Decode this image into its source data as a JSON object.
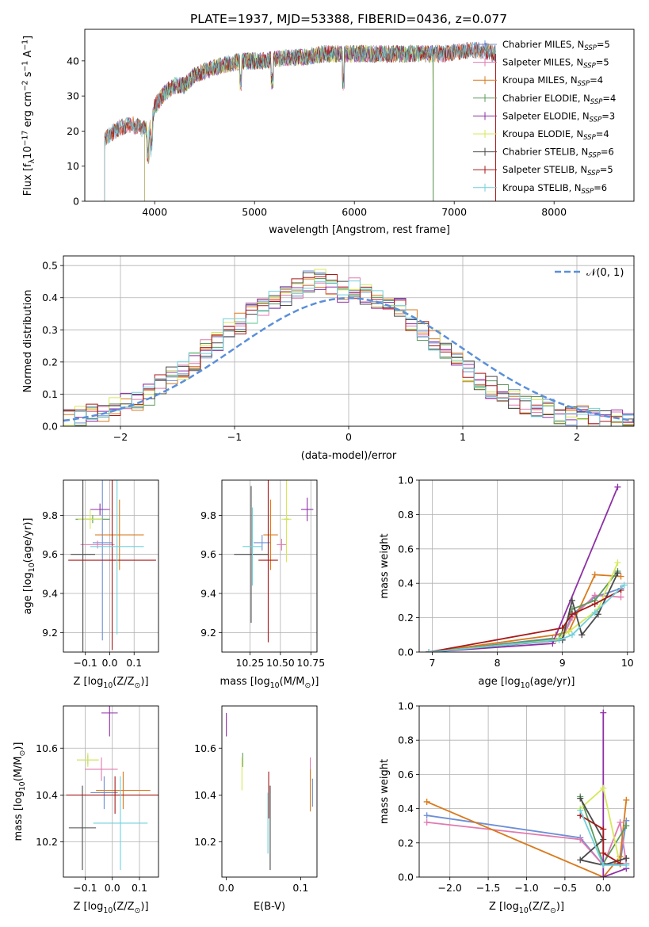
{
  "title": "PLATE=1937, MJD=53388, FIBERID=0436, z=0.077",
  "colors": {
    "chabrier_miles": "#6d8fd6",
    "salpeter_miles": "#e07aae",
    "kroupa_miles": "#d97a1c",
    "chabrier_elodie": "#5c9a5c",
    "salpeter_elodie": "#8e2fa6",
    "kroupa_elodie": "#d6e85a",
    "chabrier_stelib": "#4a4a4a",
    "salpeter_stelib": "#a81a1a",
    "kroupa_stelib": "#6fd0dc",
    "normal_curve": "#5b8fd9",
    "grid": "#b0b0b0"
  },
  "chart_data": [
    {
      "id": "spectrum",
      "type": "line",
      "xlabel": "wavelength [Angstrom, rest frame]",
      "ylabel": "Flux [f$_\\lambda$10$^{-17}$ erg cm$^{-2}$ s$^{-1}$ A$^{-1}$]",
      "ylabel_parts": [
        "Flux [f",
        "λ",
        "10",
        "−17",
        " erg cm",
        "−2",
        " s",
        "−1",
        " A",
        "−1",
        "]"
      ],
      "xlim": [
        3300,
        8800
      ],
      "ylim": [
        0,
        49
      ],
      "xticks": [
        4000,
        5000,
        6000,
        7000,
        8000
      ],
      "yticks": [
        0,
        10,
        20,
        30,
        40
      ],
      "grid": false,
      "legend_position": "upper-right",
      "legend": [
        {
          "key": "chabrier_miles",
          "label": "Chabrier MILES, N",
          "sub": "SSP",
          "tail": "=5"
        },
        {
          "key": "salpeter_miles",
          "label": "Salpeter MILES, N",
          "sub": "SSP",
          "tail": "=5"
        },
        {
          "key": "kroupa_miles",
          "label": "Kroupa MILES, N",
          "sub": "SSP",
          "tail": "=4"
        },
        {
          "key": "chabrier_elodie",
          "label": "Chabrier ELODIE, N",
          "sub": "SSP",
          "tail": "=4"
        },
        {
          "key": "salpeter_elodie",
          "label": "Salpeter ELODIE, N",
          "sub": "SSP",
          "tail": "=3"
        },
        {
          "key": "kroupa_elodie",
          "label": "Kroupa ELODIE, N",
          "sub": "SSP",
          "tail": "=4"
        },
        {
          "key": "chabrier_stelib",
          "label": "Chabrier STELIB, N",
          "sub": "SSP",
          "tail": "=6"
        },
        {
          "key": "salpeter_stelib",
          "label": "Salpeter STELIB, N",
          "sub": "SSP",
          "tail": "=5"
        },
        {
          "key": "kroupa_stelib",
          "label": "Kroupa STELIB, N",
          "sub": "SSP",
          "tail": "=6"
        }
      ],
      "continuum_wavelength": [
        3500,
        3550,
        3650,
        3750,
        3850,
        3950,
        4000,
        4100,
        4200,
        4300,
        4400,
        4500,
        4700,
        4900,
        5100,
        5300,
        5500,
        5700,
        5900,
        6100,
        6300,
        6500,
        6700,
        6900,
        7100,
        7300,
        7400
      ],
      "continuum_flux": [
        17,
        19,
        21,
        22,
        21,
        20,
        27,
        31,
        33,
        33,
        36,
        37,
        39,
        40,
        40,
        41,
        41,
        42,
        42,
        42,
        42,
        42,
        42,
        42,
        43,
        43,
        42
      ]
    },
    {
      "id": "residual_histogram",
      "type": "line",
      "xlabel": "(data-model)/error",
      "ylabel": "Normed distribution",
      "xlim": [
        -2.5,
        2.5
      ],
      "ylim": [
        0,
        0.53
      ],
      "xticks": [
        -2,
        -1,
        0,
        1,
        2
      ],
      "xtick_labels": [
        "−2",
        "−1",
        "0",
        "1",
        "2"
      ],
      "yticks": [
        0.0,
        0.1,
        0.2,
        0.3,
        0.4,
        0.5
      ],
      "ytick_labels": [
        "0.0",
        "0.1",
        "0.2",
        "0.3",
        "0.4",
        "0.5"
      ],
      "grid": true,
      "legend_position": "upper-right",
      "legend": [
        {
          "label": "𝒩(0, 1)"
        }
      ],
      "bin_width": 0.1,
      "bin_start": -2.5,
      "bin_values": [
        0.02,
        0.03,
        0.04,
        0.05,
        0.06,
        0.07,
        0.08,
        0.1,
        0.13,
        0.15,
        0.18,
        0.2,
        0.24,
        0.27,
        0.3,
        0.32,
        0.35,
        0.37,
        0.39,
        0.41,
        0.43,
        0.45,
        0.46,
        0.44,
        0.42,
        0.43,
        0.41,
        0.4,
        0.38,
        0.37,
        0.33,
        0.3,
        0.27,
        0.24,
        0.2,
        0.17,
        0.14,
        0.12,
        0.1,
        0.08,
        0.07,
        0.06,
        0.05,
        0.04,
        0.035,
        0.03,
        0.025,
        0.02,
        0.02,
        0.02
      ]
    },
    {
      "id": "z_vs_age",
      "type": "scatter",
      "xlabel": "Z [log$_{10}$(Z/Z$_\\odot$)]",
      "xlabel_parts": [
        "Z [log",
        "10",
        "(Z/Z",
        "⊙",
        ")]"
      ],
      "ylabel": "age  [log$_{10}$(age/yr)]",
      "ylabel_parts": [
        "age  [log",
        "10",
        "(age/yr)]"
      ],
      "xlim": [
        -0.19,
        0.2
      ],
      "ylim": [
        9.1,
        9.98
      ],
      "xticks": [
        -0.1,
        0.0,
        0.1
      ],
      "xtick_labels": [
        "−0.1",
        "0.0",
        "0.1"
      ],
      "yticks": [
        9.2,
        9.4,
        9.6,
        9.8
      ],
      "ytick_labels": [
        "9.2",
        "9.4",
        "9.6",
        "9.8"
      ],
      "grid": true,
      "points": [
        {
          "key": "chabrier_miles",
          "x": -0.03,
          "xerr": 0.04,
          "y": 9.66,
          "yerr": 0.5
        },
        {
          "key": "salpeter_miles",
          "x": -0.05,
          "xerr": 0.07,
          "y": 9.65,
          "yerr": 0.02
        },
        {
          "key": "kroupa_miles",
          "x": 0.04,
          "xerr": 0.1,
          "y": 9.7,
          "yerr": 0.18
        },
        {
          "key": "chabrier_elodie",
          "x": -0.07,
          "xerr": 0.07,
          "y": 9.78,
          "yerr": 0.02
        },
        {
          "key": "salpeter_elodie",
          "x": -0.04,
          "xerr": 0.04,
          "y": 9.83,
          "yerr": 0.03
        },
        {
          "key": "kroupa_elodie",
          "x": -0.08,
          "xerr": 0.05,
          "y": 9.78,
          "yerr": 0.05
        },
        {
          "key": "chabrier_stelib",
          "x": -0.11,
          "xerr": 0.05,
          "y": 9.6,
          "yerr": 0.5
        },
        {
          "key": "salpeter_stelib",
          "x": 0.01,
          "xerr": 0.18,
          "y": 9.57,
          "yerr": 0.46
        },
        {
          "key": "kroupa_stelib",
          "x": 0.03,
          "xerr": 0.11,
          "y": 9.64,
          "yerr": 0.45
        }
      ]
    },
    {
      "id": "mass_vs_age",
      "type": "scatter",
      "xlabel": "mass [log$_{10}$(M/M$_\\odot$)]",
      "xlabel_parts": [
        "mass [log",
        "10",
        "(M/M",
        "⊙",
        ")]"
      ],
      "xlim": [
        10.02,
        10.8
      ],
      "ylim": [
        9.1,
        9.98
      ],
      "xticks": [
        10.25,
        10.5,
        10.75
      ],
      "xtick_labels": [
        "10.25",
        "10.50",
        "10.75"
      ],
      "yticks": [
        9.2,
        9.4,
        9.6,
        9.8
      ],
      "ytick_labels": [
        "9.2",
        "9.4",
        "9.6",
        "9.8"
      ],
      "grid": true,
      "points": [
        {
          "key": "chabrier_miles",
          "x": 10.35,
          "xerr": 0.07,
          "y": 9.66,
          "yerr": 0.04
        },
        {
          "key": "salpeter_miles",
          "x": 10.51,
          "xerr": 0.04,
          "y": 9.65,
          "yerr": 0.03
        },
        {
          "key": "kroupa_miles",
          "x": 10.42,
          "xerr": 0.06,
          "y": 9.7,
          "yerr": 0.18
        },
        {
          "key": "chabrier_elodie",
          "x": 10.55,
          "xerr": 0.02,
          "y": 9.78,
          "yerr": 0.02
        },
        {
          "key": "salpeter_elodie",
          "x": 10.72,
          "xerr": 0.05,
          "y": 9.83,
          "yerr": 0.06
        },
        {
          "key": "kroupa_elodie",
          "x": 10.55,
          "xerr": 0.04,
          "y": 9.78,
          "yerr": 0.22
        },
        {
          "key": "chabrier_stelib",
          "x": 10.26,
          "xerr": 0.14,
          "y": 9.6,
          "yerr": 0.35
        },
        {
          "key": "salpeter_stelib",
          "x": 10.4,
          "xerr": 0.08,
          "y": 9.57,
          "yerr": 0.42
        },
        {
          "key": "kroupa_stelib",
          "x": 10.27,
          "xerr": 0.08,
          "y": 9.64,
          "yerr": 0.2
        }
      ]
    },
    {
      "id": "age_vs_weight",
      "type": "line",
      "xlabel": "age  [log$_{10}$(age/yr)]",
      "xlabel_parts": [
        "age  [log",
        "10",
        "(age/yr)]"
      ],
      "ylabel": "mass weight",
      "xlim": [
        6.8,
        10.1
      ],
      "ylim": [
        0,
        1
      ],
      "xticks": [
        7,
        8,
        9,
        10
      ],
      "xtick_labels": [
        "7",
        "8",
        "9",
        "10"
      ],
      "yticks": [
        0.0,
        0.2,
        0.4,
        0.6,
        0.8,
        1.0
      ],
      "ytick_labels": [
        "0.0",
        "0.2",
        "0.4",
        "0.6",
        "0.8",
        "1.0"
      ],
      "grid": true,
      "series": [
        {
          "key": "chabrier_miles",
          "x": [
            6.95,
            8.85,
            9.0,
            9.15,
            9.5,
            9.9
          ],
          "y": [
            0.0,
            0.08,
            0.07,
            0.22,
            0.32,
            0.37
          ]
        },
        {
          "key": "salpeter_miles",
          "x": [
            6.95,
            8.85,
            9.0,
            9.15,
            9.5,
            9.9
          ],
          "y": [
            0.0,
            0.07,
            0.08,
            0.2,
            0.33,
            0.32
          ]
        },
        {
          "key": "kroupa_miles",
          "x": [
            6.95,
            8.9,
            9.1,
            9.5,
            9.9
          ],
          "y": [
            0.0,
            0.1,
            0.12,
            0.45,
            0.44
          ]
        },
        {
          "key": "chabrier_elodie",
          "x": [
            6.95,
            8.95,
            9.15,
            9.5,
            9.85
          ],
          "y": [
            0.0,
            0.08,
            0.25,
            0.3,
            0.47
          ]
        },
        {
          "key": "salpeter_elodie",
          "x": [
            6.95,
            8.85,
            9.85
          ],
          "y": [
            0.0,
            0.05,
            0.96
          ]
        },
        {
          "key": "kroupa_elodie",
          "x": [
            6.95,
            8.9,
            9.1,
            9.55,
            9.85
          ],
          "y": [
            0.0,
            0.07,
            0.12,
            0.25,
            0.52
          ]
        },
        {
          "key": "chabrier_stelib",
          "x": [
            6.95,
            9.0,
            9.15,
            9.3,
            9.55,
            9.85
          ],
          "y": [
            0.0,
            0.07,
            0.3,
            0.1,
            0.22,
            0.46
          ]
        },
        {
          "key": "salpeter_stelib",
          "x": [
            6.95,
            9.0,
            9.15,
            9.5,
            9.9
          ],
          "y": [
            0.0,
            0.14,
            0.22,
            0.28,
            0.36
          ]
        },
        {
          "key": "kroupa_stelib",
          "x": [
            6.95,
            8.95,
            9.15,
            9.5,
            9.95
          ],
          "y": [
            0.0,
            0.07,
            0.1,
            0.23,
            0.39
          ]
        }
      ]
    },
    {
      "id": "z_vs_mass",
      "type": "scatter",
      "xlabel": "Z [log$_{10}$(Z/Z$_\\odot$)]",
      "xlabel_parts": [
        "Z [log",
        "10",
        "(Z/Z",
        "⊙",
        ")]"
      ],
      "ylabel": "mass [log$_{10}$(M/M$_\\odot$)]",
      "ylabel_parts": [
        "mass [log",
        "10",
        "(M/M",
        "⊙",
        ")]"
      ],
      "xlim": [
        -0.18,
        0.17
      ],
      "ylim": [
        10.05,
        10.78
      ],
      "xticks": [
        -0.1,
        0.0,
        0.1
      ],
      "xtick_labels": [
        "−0.1",
        "0.0",
        "0.1"
      ],
      "yticks": [
        10.2,
        10.4,
        10.6
      ],
      "ytick_labels": [
        "10.2",
        "10.4",
        "10.6"
      ],
      "grid": true,
      "points": [
        {
          "key": "chabrier_miles",
          "x": -0.03,
          "xerr": 0.05,
          "y": 10.41,
          "yerr": 0.07
        },
        {
          "key": "salpeter_miles",
          "x": -0.04,
          "xerr": 0.06,
          "y": 10.51,
          "yerr": 0.05
        },
        {
          "key": "kroupa_miles",
          "x": 0.04,
          "xerr": 0.1,
          "y": 10.42,
          "yerr": 0.08
        },
        {
          "key": "chabrier_elodie",
          "x": -0.09,
          "xerr": 0.04,
          "y": 10.55,
          "yerr": 0.02
        },
        {
          "key": "salpeter_elodie",
          "x": -0.01,
          "xerr": 0.03,
          "y": 10.75,
          "yerr": 0.1
        },
        {
          "key": "kroupa_elodie",
          "x": -0.09,
          "xerr": 0.04,
          "y": 10.55,
          "yerr": 0.03
        },
        {
          "key": "chabrier_stelib",
          "x": -0.11,
          "xerr": 0.05,
          "y": 10.26,
          "yerr": 0.18
        },
        {
          "key": "salpeter_stelib",
          "x": 0.01,
          "xerr": 0.18,
          "y": 10.4,
          "yerr": 0.08
        },
        {
          "key": "kroupa_stelib",
          "x": 0.03,
          "xerr": 0.1,
          "y": 10.28,
          "yerr": 0.2
        }
      ]
    },
    {
      "id": "ebv_vs_mass",
      "type": "scatter",
      "xlabel": "E(B-V)",
      "xlim": [
        -0.006,
        0.122
      ],
      "ylim": [
        10.05,
        10.78
      ],
      "xticks": [
        0.0,
        0.1
      ],
      "xtick_labels": [
        "0.0",
        "0.1"
      ],
      "yticks": [
        10.2,
        10.4,
        10.6
      ],
      "ytick_labels": [
        "10.2",
        "10.4",
        "10.6"
      ],
      "grid": false,
      "points": [
        {
          "key": "chabrier_miles",
          "x": 0.116,
          "y": 10.41,
          "yerr": 0.06
        },
        {
          "key": "salpeter_miles",
          "x": 0.113,
          "y": 10.51,
          "yerr": 0.05
        },
        {
          "key": "kroupa_miles",
          "x": 0.113,
          "y": 10.42,
          "yerr": 0.09
        },
        {
          "key": "chabrier_elodie",
          "x": 0.022,
          "y": 10.55,
          "yerr": 0.03
        },
        {
          "key": "salpeter_elodie",
          "x": 0.0,
          "y": 10.7,
          "yerr": 0.05
        },
        {
          "key": "kroupa_elodie",
          "x": 0.021,
          "y": 10.49,
          "yerr": 0.07
        },
        {
          "key": "chabrier_stelib",
          "x": 0.059,
          "y": 10.26,
          "yerr": 0.18
        },
        {
          "key": "salpeter_stelib",
          "x": 0.057,
          "y": 10.4,
          "yerr": 0.1
        },
        {
          "key": "kroupa_stelib",
          "x": 0.056,
          "y": 10.28,
          "yerr": 0.13
        }
      ]
    },
    {
      "id": "z_vs_weight",
      "type": "line",
      "xlabel": "Z [log$_{10}$(Z/Z$_\\odot$)]",
      "xlabel_parts": [
        "Z [log",
        "10",
        "(Z/Z",
        "⊙",
        ")]"
      ],
      "ylabel": "mass weight",
      "xlim": [
        -2.4,
        0.4
      ],
      "ylim": [
        0,
        1
      ],
      "xticks": [
        -2.0,
        -1.5,
        -1.0,
        -0.5,
        0.0
      ],
      "xtick_labels": [
        "−2.0",
        "−1.5",
        "−1.0",
        "−0.5",
        "0.0"
      ],
      "yticks": [
        0.0,
        0.2,
        0.4,
        0.6,
        0.8,
        1.0
      ],
      "ytick_labels": [
        "0.0",
        "0.2",
        "0.4",
        "0.6",
        "0.8",
        "1.0"
      ],
      "grid": true,
      "series": [
        {
          "key": "chabrier_miles",
          "x": [
            -2.3,
            -0.3,
            0.0,
            0.22,
            0.3
          ],
          "y": [
            0.36,
            0.23,
            0.07,
            0.08,
            0.33
          ]
        },
        {
          "key": "salpeter_miles",
          "x": [
            -2.3,
            -0.3,
            0.0,
            0.22,
            0.3
          ],
          "y": [
            0.32,
            0.22,
            0.07,
            0.32,
            0.08
          ]
        },
        {
          "key": "kroupa_miles",
          "x": [
            -2.3,
            0.0,
            0.22,
            0.3
          ],
          "y": [
            0.44,
            0.0,
            0.12,
            0.45
          ]
        },
        {
          "key": "chabrier_elodie",
          "x": [
            -0.3,
            0.0,
            0.3
          ],
          "y": [
            0.47,
            0.08,
            0.3
          ]
        },
        {
          "key": "salpeter_elodie",
          "x": [
            0.0,
            0.0,
            0.3
          ],
          "y": [
            0.96,
            0.0,
            0.05
          ]
        },
        {
          "key": "kroupa_elodie",
          "x": [
            -0.3,
            0.0,
            0.22
          ],
          "y": [
            0.4,
            0.52,
            0.07
          ]
        },
        {
          "key": "chabrier_stelib",
          "x": [
            -0.3,
            0.0,
            -0.3,
            0.0,
            0.3
          ],
          "y": [
            0.46,
            0.22,
            0.1,
            0.07,
            0.11
          ]
        },
        {
          "key": "salpeter_stelib",
          "x": [
            -0.3,
            0.0,
            0.0,
            0.22
          ],
          "y": [
            0.36,
            0.28,
            0.14,
            0.08
          ]
        },
        {
          "key": "kroupa_stelib",
          "x": [
            -0.3,
            0.0,
            0.3
          ],
          "y": [
            0.39,
            0.07,
            0.07
          ]
        }
      ]
    }
  ]
}
